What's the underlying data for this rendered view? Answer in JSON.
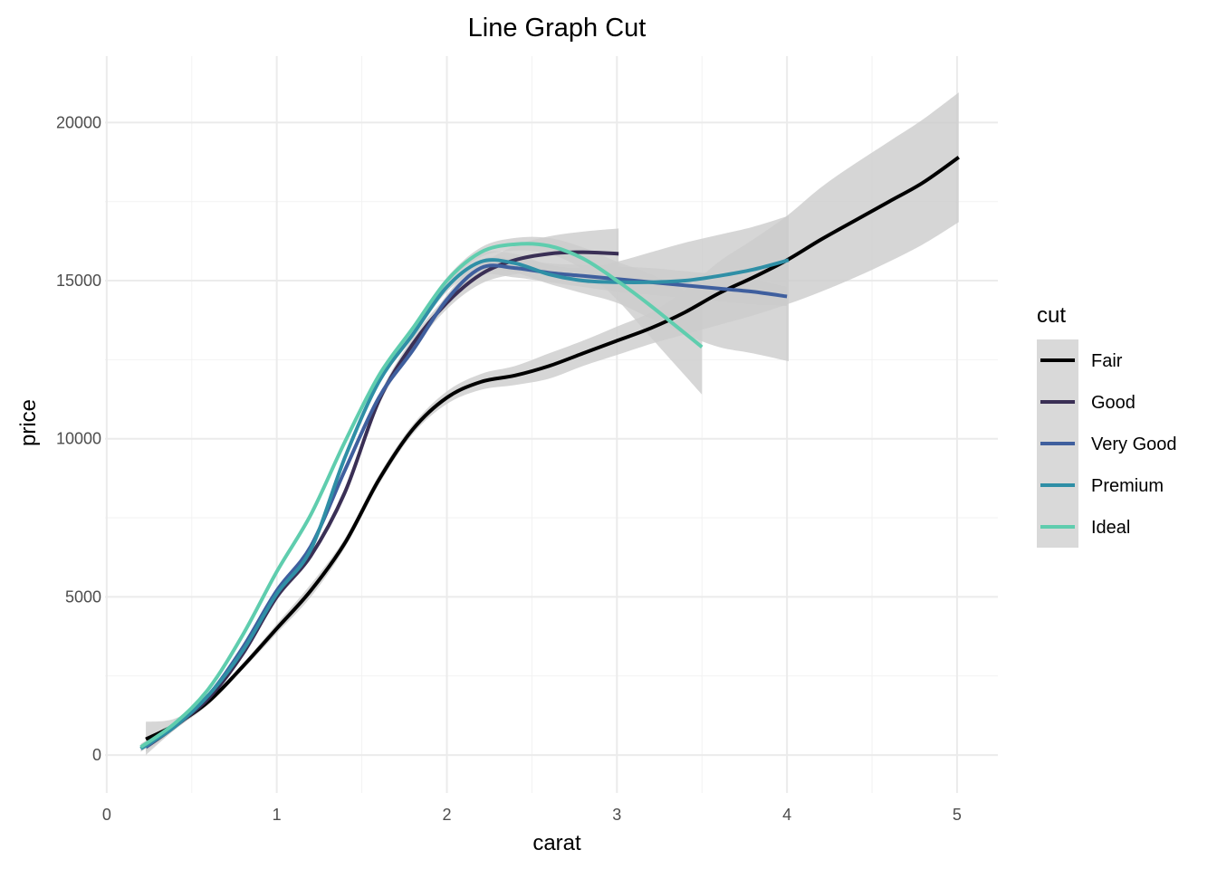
{
  "chart_data": {
    "type": "line",
    "title": "Line Graph Cut",
    "xlabel": "carat",
    "ylabel": "price",
    "xlim": [
      -0.01,
      5.24
    ],
    "ylim": [
      -1200,
      22100
    ],
    "x_ticks": [
      "0",
      "1",
      "2",
      "3",
      "4",
      "5"
    ],
    "y_ticks": [
      "0",
      "5000",
      "10000",
      "15000",
      "20000"
    ],
    "grid": true,
    "confidence_band_color": "#cccccc",
    "legend": {
      "title": "cut",
      "position": "right",
      "background": "#d9d9d9"
    },
    "series": [
      {
        "name": "Fair",
        "color": "#000000",
        "x": [
          0.23,
          0.4,
          0.6,
          0.8,
          1.0,
          1.2,
          1.4,
          1.6,
          1.8,
          2.0,
          2.2,
          2.4,
          2.6,
          2.8,
          3.0,
          3.2,
          3.4,
          3.6,
          3.8,
          4.0,
          4.2,
          4.4,
          4.6,
          4.8,
          5.01
        ],
        "y": [
          500,
          950,
          1700,
          2800,
          4000,
          5200,
          6700,
          8700,
          10300,
          11300,
          11800,
          12000,
          12300,
          12700,
          13100,
          13500,
          14000,
          14600,
          15100,
          15650,
          16300,
          16900,
          17500,
          18100,
          18900
        ],
        "band_lo": [
          0,
          800,
          1600,
          2700,
          3850,
          5000,
          6550,
          8550,
          10150,
          11100,
          11550,
          11700,
          11900,
          12300,
          12650,
          13000,
          13300,
          13600,
          13900,
          14250,
          14650,
          15100,
          15600,
          16150,
          16850
        ],
        "band_hi": [
          1050,
          1150,
          1800,
          2900,
          4150,
          5400,
          6850,
          8850,
          10450,
          11500,
          12050,
          12300,
          12700,
          13100,
          13550,
          14000,
          14700,
          15600,
          16300,
          17050,
          17950,
          18700,
          19400,
          20100,
          20950
        ]
      },
      {
        "name": "Good",
        "color": "#3a2f55",
        "x": [
          0.23,
          0.4,
          0.6,
          0.8,
          1.0,
          1.2,
          1.4,
          1.6,
          1.8,
          2.0,
          2.2,
          2.4,
          2.6,
          2.8,
          3.01
        ],
        "y": [
          250,
          900,
          1800,
          3200,
          5000,
          6300,
          8300,
          11200,
          13000,
          14300,
          15200,
          15650,
          15850,
          15900,
          15850
        ],
        "band_lo": [
          100,
          800,
          1700,
          3100,
          4900,
          6200,
          8150,
          11050,
          12800,
          14100,
          14900,
          15200,
          15300,
          15250,
          15100
        ],
        "band_hi": [
          400,
          1000,
          1900,
          3300,
          5100,
          6400,
          8450,
          11350,
          13200,
          14500,
          15500,
          16100,
          16400,
          16550,
          16650
        ]
      },
      {
        "name": "Very Good",
        "color": "#3f5f9e",
        "x": [
          0.23,
          0.4,
          0.6,
          0.8,
          1.0,
          1.2,
          1.4,
          1.6,
          1.8,
          2.0,
          2.2,
          2.4,
          2.6,
          2.8,
          3.0,
          3.2,
          3.4,
          3.6,
          3.8,
          4.0
        ],
        "y": [
          250,
          950,
          1900,
          3400,
          5200,
          6600,
          9000,
          11300,
          12800,
          14400,
          15400,
          15400,
          15250,
          15150,
          15050,
          14950,
          14850,
          14750,
          14650,
          14500
        ],
        "band_lo": [
          150,
          870,
          1820,
          3320,
          5120,
          6520,
          8900,
          11200,
          12700,
          14250,
          15150,
          15100,
          14950,
          14800,
          14650,
          14550,
          14450,
          14350,
          14250,
          14200
        ],
        "band_hi": [
          350,
          1030,
          1980,
          3480,
          5280,
          6680,
          9100,
          11400,
          12900,
          14550,
          15650,
          15700,
          15550,
          15500,
          15450,
          15400,
          15300,
          15200,
          15050,
          14800
        ]
      },
      {
        "name": "Premium",
        "color": "#2f8fa6",
        "x": [
          0.2,
          0.4,
          0.6,
          0.8,
          1.0,
          1.2,
          1.4,
          1.6,
          1.8,
          2.0,
          2.2,
          2.4,
          2.6,
          2.8,
          3.0,
          3.2,
          3.4,
          3.6,
          3.8,
          4.01
        ],
        "y": [
          200,
          900,
          1900,
          3300,
          5100,
          6500,
          9400,
          11800,
          13300,
          14800,
          15600,
          15550,
          15200,
          15000,
          14950,
          14950,
          15000,
          15150,
          15350,
          15650
        ],
        "band_lo": [
          100,
          830,
          1830,
          3230,
          5030,
          6400,
          9300,
          11700,
          13200,
          14650,
          15350,
          15250,
          14900,
          14600,
          14300,
          13800,
          13300,
          12900,
          12700,
          12450
        ],
        "band_hi": [
          300,
          970,
          1970,
          3370,
          5170,
          6600,
          9500,
          11900,
          13400,
          14950,
          15850,
          15850,
          15500,
          15400,
          15600,
          15900,
          16200,
          16450,
          16700,
          17050
        ]
      },
      {
        "name": "Ideal",
        "color": "#5fcdae",
        "x": [
          0.2,
          0.4,
          0.6,
          0.8,
          1.0,
          1.2,
          1.4,
          1.6,
          1.8,
          2.0,
          2.2,
          2.4,
          2.6,
          2.8,
          3.0,
          3.2,
          3.5
        ],
        "y": [
          250,
          1000,
          2100,
          3800,
          5800,
          7600,
          9900,
          12000,
          13500,
          15000,
          15900,
          16150,
          16100,
          15700,
          15000,
          14200,
          12900
        ],
        "band_lo": [
          150,
          930,
          2030,
          3730,
          5730,
          7530,
          9820,
          11920,
          13420,
          14900,
          15750,
          15950,
          15850,
          15350,
          14400,
          13200,
          11400
        ],
        "band_hi": [
          350,
          1070,
          2170,
          3870,
          5870,
          7670,
          9980,
          12080,
          13580,
          15100,
          16050,
          16350,
          16350,
          16050,
          15600,
          15200,
          14400
        ]
      }
    ]
  }
}
